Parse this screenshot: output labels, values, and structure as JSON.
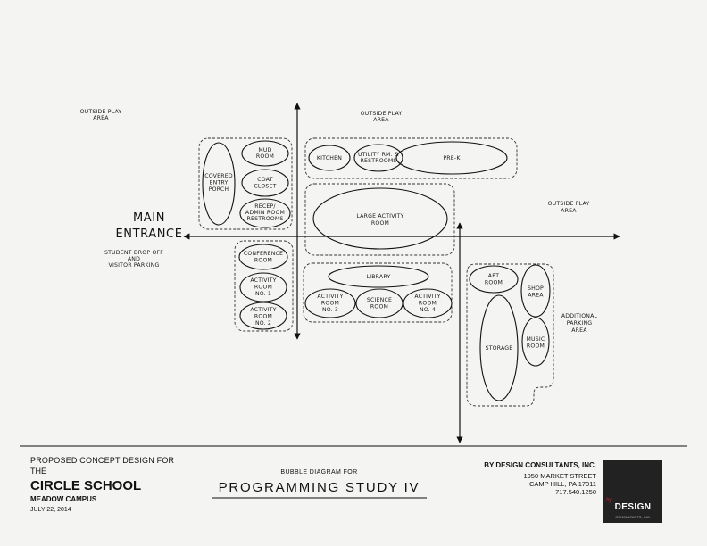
{
  "diagram": {
    "zones": {
      "outside_play_left": [
        "OUTSIDE PLAY",
        "AREA"
      ],
      "outside_play_top": [
        "OUTSIDE PLAY",
        "AREA"
      ],
      "outside_play_right": [
        "OUTSIDE PLAY",
        "AREA"
      ],
      "main_entrance": [
        "MAIN",
        "ENTRANCE"
      ],
      "student_drop_off": [
        "STUDENT DROP OFF",
        "AND",
        "VISITOR PARKING"
      ],
      "additional_parking": [
        "ADDITIONAL",
        "PARKING",
        "AREA"
      ]
    },
    "rooms": {
      "covered_entry_porch": [
        "COVERED",
        "ENTRY",
        "PORCH"
      ],
      "mud_room": [
        "MUD",
        "ROOM"
      ],
      "coat_closet": [
        "COAT",
        "CLOSET"
      ],
      "recep_admin": [
        "RECEP/",
        "ADMIN ROOM",
        "RESTROOMS"
      ],
      "kitchen": [
        "KITCHEN"
      ],
      "utility": [
        "UTILITY RM. &",
        "RESTROOMS"
      ],
      "pre_k": [
        "PRE-K"
      ],
      "large_activity": [
        "LARGE ACTIVITY",
        "ROOM"
      ],
      "conference": [
        "CONFERENCE",
        "ROOM"
      ],
      "activity_1": [
        "ACTIVITY",
        "ROOM",
        "NO. 1"
      ],
      "activity_2": [
        "ACTIVITY",
        "ROOM",
        "NO. 2"
      ],
      "library": [
        "LIBRARY"
      ],
      "activity_3": [
        "ACTIVITY",
        "ROOM",
        "NO. 3"
      ],
      "science": [
        "SCIENCE",
        "ROOM"
      ],
      "activity_4": [
        "ACTIVITY",
        "ROOM",
        "NO. 4"
      ],
      "art_room": [
        "ART",
        "ROOM"
      ],
      "shop_area": [
        "SHOP",
        "AREA"
      ],
      "storage": [
        "STORAGE"
      ],
      "music_room": [
        "MUSIC",
        "ROOM"
      ]
    }
  },
  "title_block": {
    "project_line1": "PROPOSED CONCEPT DESIGN FOR",
    "project_line2": "THE",
    "school_name": "CIRCLE SCHOOL",
    "campus": "MEADOW CAMPUS",
    "date": "JULY 22, 2014",
    "drawing_subtitle": "BUBBLE DIAGRAM FOR",
    "drawing_title": "PROGRAMMING STUDY IV",
    "firm_name": "BY DESIGN CONSULTANTS, INC.",
    "address1": "1950 MARKET STREET",
    "address2": "CAMP HILL, PA 17011",
    "phone": "717.540.1250",
    "logo_by": "by",
    "logo_word": "DESIGN",
    "logo_sub": "CONSULTANTS, INC."
  }
}
